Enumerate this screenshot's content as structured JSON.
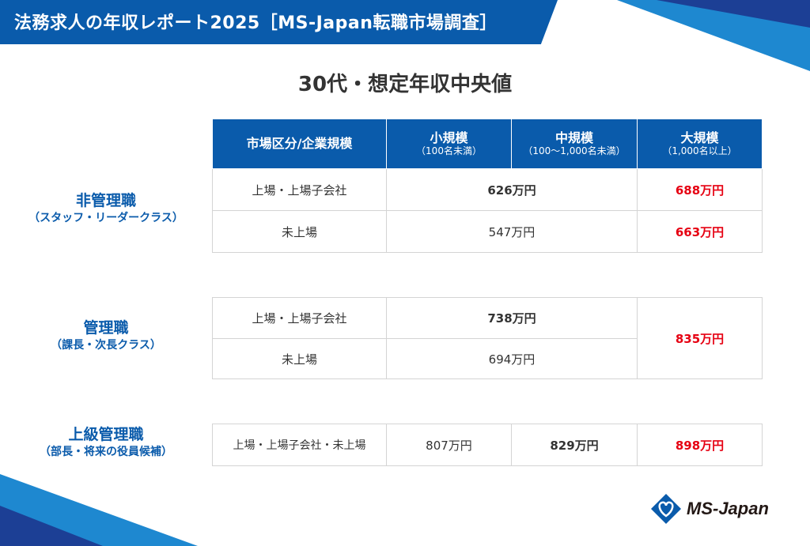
{
  "header": {
    "title": "法務求人の年収レポート2025［MS-Japan転職市場調査］"
  },
  "subtitle": "30代・想定年収中央値",
  "table_header": {
    "col0": "市場区分/企業規模",
    "col1": "小規模",
    "col1_sub": "（100名未満）",
    "col2": "中規模",
    "col2_sub": "（100〜1,000名未満）",
    "col3": "大規模",
    "col3_sub": "（1,000名以上）"
  },
  "sections": [
    {
      "label": "非管理職",
      "sub": "（スタッフ・リーダークラス）",
      "rows": [
        {
          "market": "上場・上場子会社",
          "small_mid": "626万円",
          "large": "688万円"
        },
        {
          "market": "未上場",
          "small_mid": "547万円",
          "large": "663万円"
        }
      ]
    },
    {
      "label": "管理職",
      "sub": "（課長・次長クラス）",
      "rows": [
        {
          "market": "上場・上場子会社",
          "small_mid": "738万円"
        },
        {
          "market": "未上場",
          "small_mid": "694万円"
        }
      ],
      "large": "835万円"
    },
    {
      "label": "上級管理職",
      "sub": "（部長・将来の役員候補）",
      "rows": [
        {
          "market": "上場・上場子会社・未上場",
          "small": "807万円",
          "mid": "829万円",
          "large": "898万円"
        }
      ]
    }
  ],
  "logo": {
    "text": "MS-Japan"
  },
  "colors": {
    "brand_blue": "#0a5bab",
    "highlight_red": "#e60012"
  }
}
